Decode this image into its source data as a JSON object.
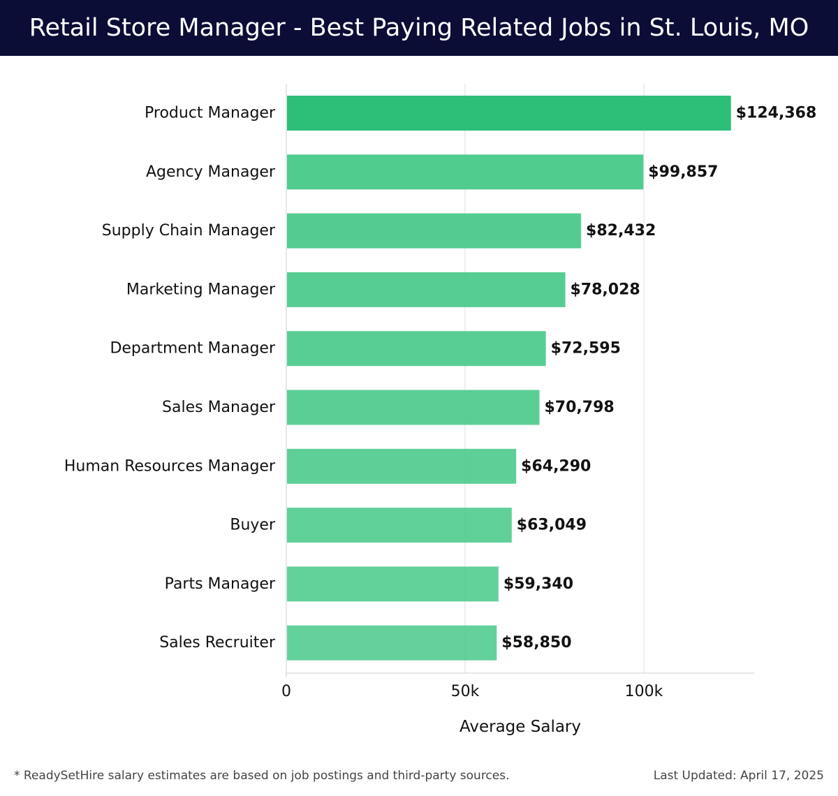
{
  "header": {
    "title": "Retail Store Manager - Best Paying Related Jobs in St. Louis, MO"
  },
  "chart_data": {
    "type": "bar",
    "orientation": "horizontal",
    "title": "Retail Store Manager - Best Paying Related Jobs in St. Louis, MO",
    "xlabel": "Average Salary",
    "ylabel": "",
    "xlim": [
      0,
      131000
    ],
    "xticks": [
      0,
      50000,
      100000
    ],
    "xtick_labels": [
      "0",
      "50k",
      "100k"
    ],
    "grid": true,
    "categories": [
      "Product Manager",
      "Agency Manager",
      "Supply Chain Manager",
      "Marketing Manager",
      "Department Manager",
      "Sales Manager",
      "Human Resources Manager",
      "Buyer",
      "Parts Manager",
      "Sales Recruiter"
    ],
    "values": [
      124368,
      99857,
      82432,
      78028,
      72595,
      70798,
      64290,
      63049,
      59340,
      58850
    ],
    "value_labels": [
      "$124,368",
      "$99,857",
      "$82,432",
      "$78,028",
      "$72,595",
      "$70,798",
      "$64,290",
      "$63,049",
      "$59,340",
      "$58,850"
    ],
    "colors": {
      "top_bar": "#2dbf78",
      "bar": "#4fcb8e",
      "gridline": "#dddddd",
      "axis": "#cccccc"
    }
  },
  "footer": {
    "note": "* ReadySetHire salary estimates are based on job postings and third-party sources.",
    "updated": "Last Updated: April 17, 2025"
  }
}
